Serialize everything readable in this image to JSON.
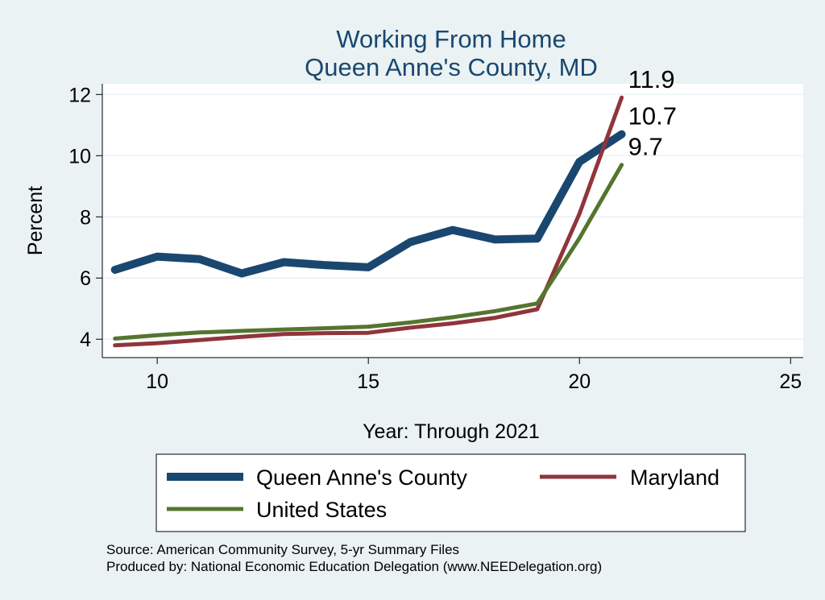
{
  "chart_data": {
    "type": "line",
    "title": "Working From Home",
    "subtitle": "Queen Anne's County, MD",
    "xlabel": "Year: Through 2021",
    "ylabel": "Percent",
    "xlim": [
      8.7,
      25.3
    ],
    "ylim": [
      3.4,
      12.35
    ],
    "xticks": [
      10,
      15,
      20,
      25
    ],
    "yticks": [
      4,
      6,
      8,
      10,
      12
    ],
    "grid": true,
    "legend_position": "bottom",
    "series": [
      {
        "name": "Queen Anne's County",
        "color": "#1a476f",
        "width": 10,
        "x": [
          9,
          10,
          11,
          12,
          13,
          14,
          15,
          16,
          17,
          18,
          19,
          20,
          21
        ],
        "y": [
          6.27,
          6.7,
          6.62,
          6.15,
          6.52,
          6.42,
          6.35,
          7.18,
          7.57,
          7.26,
          7.29,
          9.8,
          10.7
        ]
      },
      {
        "name": "Maryland",
        "color": "#90353b",
        "width": 5,
        "x": [
          9,
          10,
          11,
          12,
          13,
          14,
          15,
          16,
          17,
          18,
          19,
          20,
          21
        ],
        "y": [
          3.8,
          3.87,
          3.97,
          4.08,
          4.17,
          4.2,
          4.21,
          4.38,
          4.52,
          4.7,
          4.98,
          8.1,
          11.9
        ]
      },
      {
        "name": "United States",
        "color": "#55752f",
        "width": 5,
        "x": [
          9,
          10,
          11,
          12,
          13,
          14,
          15,
          16,
          17,
          18,
          19,
          20,
          21
        ],
        "y": [
          4.02,
          4.13,
          4.22,
          4.27,
          4.32,
          4.36,
          4.41,
          4.55,
          4.72,
          4.92,
          5.17,
          7.3,
          9.7
        ]
      }
    ],
    "end_labels": [
      {
        "series": "Maryland",
        "text": "11.9"
      },
      {
        "series": "Queen Anne's County",
        "text": "10.7"
      },
      {
        "series": "United States",
        "text": "9.7"
      }
    ]
  },
  "notes": {
    "source": "Source: American Community Survey, 5-yr Summary Files",
    "produced": "Produced by: National Economic Education Delegation (www.NEEDelegation.org)"
  }
}
